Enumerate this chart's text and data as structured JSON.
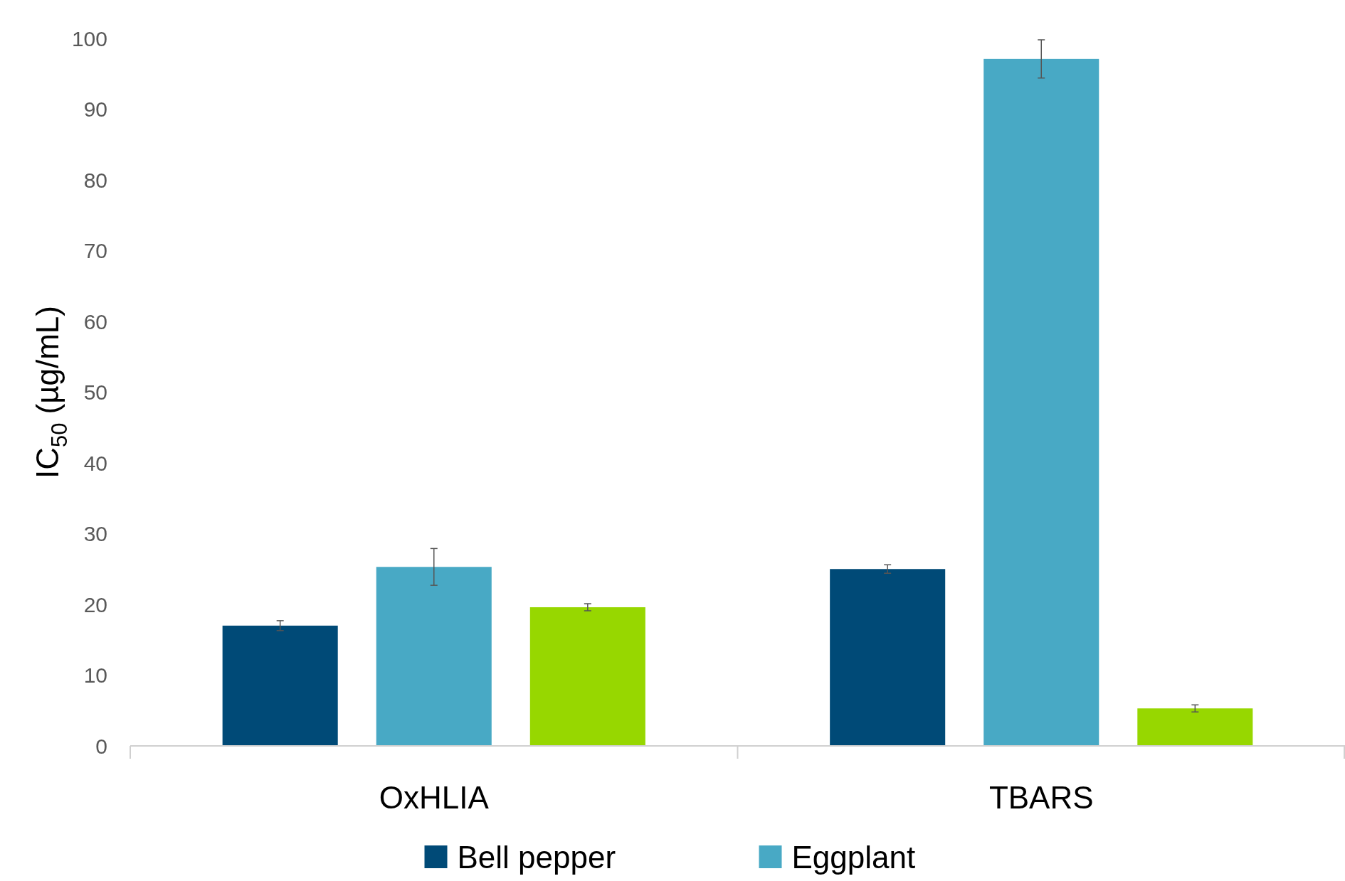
{
  "chart_data": {
    "type": "bar",
    "ylabel": "IC$_{50}$ (µg/mL)",
    "categories": [
      "OxHLIA",
      "TBARS"
    ],
    "series": [
      {
        "name": "Bell pepper",
        "color": "#004a77",
        "values": [
          17.0,
          25.0
        ],
        "errors": [
          0.7,
          0.6
        ]
      },
      {
        "name": "Eggplant",
        "color": "#48a9c5",
        "values": [
          25.3,
          97.1
        ],
        "errors": [
          2.6,
          2.7
        ]
      },
      {
        "color": "#97d700",
        "values": [
          19.6,
          5.3
        ],
        "errors": [
          0.5,
          0.5
        ]
      }
    ],
    "ylim": [
      0,
      100
    ],
    "yticks": [
      0,
      10,
      20,
      30,
      40,
      50,
      60,
      70,
      80,
      90,
      100
    ],
    "grid": false,
    "legend": "bottom"
  }
}
